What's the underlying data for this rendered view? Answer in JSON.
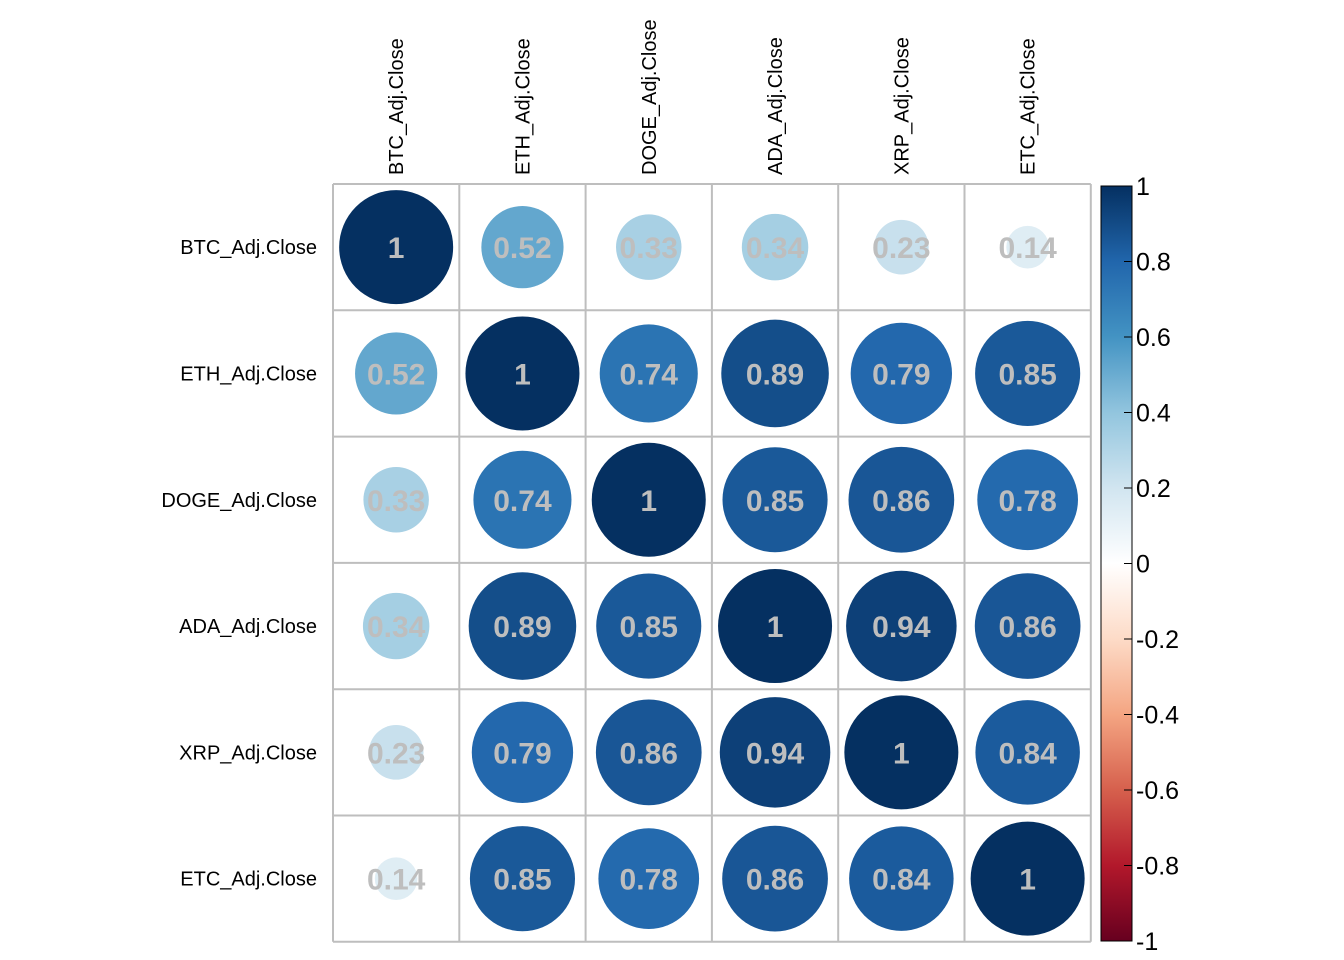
{
  "chart_data": {
    "type": "heatmap",
    "variables": [
      "BTC_Adj.Close",
      "ETH_Adj.Close",
      "DOGE_Adj.Close",
      "ADA_Adj.Close",
      "XRP_Adj.Close",
      "ETC_Adj.Close"
    ],
    "matrix": [
      [
        1,
        0.52,
        0.33,
        0.34,
        0.23,
        0.14
      ],
      [
        0.52,
        1,
        0.74,
        0.89,
        0.79,
        0.85
      ],
      [
        0.33,
        0.74,
        1,
        0.85,
        0.86,
        0.78
      ],
      [
        0.34,
        0.89,
        0.85,
        1,
        0.94,
        0.86
      ],
      [
        0.23,
        0.79,
        0.86,
        0.94,
        1,
        0.84
      ],
      [
        0.14,
        0.85,
        0.78,
        0.86,
        0.84,
        1
      ]
    ],
    "value_labels": [
      [
        "1",
        "0.52",
        "0.33",
        "0.34",
        "0.23",
        "0.14"
      ],
      [
        "0.52",
        "1",
        "0.74",
        "0.89",
        "0.79",
        "0.85"
      ],
      [
        "0.33",
        "0.74",
        "1",
        "0.85",
        "0.86",
        "0.78"
      ],
      [
        "0.34",
        "0.89",
        "0.85",
        "1",
        "0.94",
        "0.86"
      ],
      [
        "0.23",
        "0.79",
        "0.86",
        "0.94",
        "1",
        "0.84"
      ],
      [
        "0.14",
        "0.85",
        "0.78",
        "0.86",
        "0.84",
        "1"
      ]
    ],
    "colorbar": {
      "range": [
        -1,
        1
      ],
      "tick_values": [
        1,
        0.8,
        0.6,
        0.4,
        0.2,
        0,
        -0.2,
        -0.4,
        -0.6,
        -0.8,
        -1
      ],
      "tick_labels": [
        "1",
        "0.8",
        "0.6",
        "0.4",
        "0.2",
        "0",
        "-0.2",
        "-0.4",
        "-0.6",
        "-0.8",
        "-1"
      ],
      "colors": [
        "#67001F",
        "#B2182B",
        "#D6604D",
        "#F4A582",
        "#FDDBC7",
        "#FFFFFF",
        "#D1E5F0",
        "#92C5DE",
        "#4393C3",
        "#2166AC",
        "#053061"
      ]
    },
    "grid": true,
    "value_label_color": "#BEBEBE"
  }
}
